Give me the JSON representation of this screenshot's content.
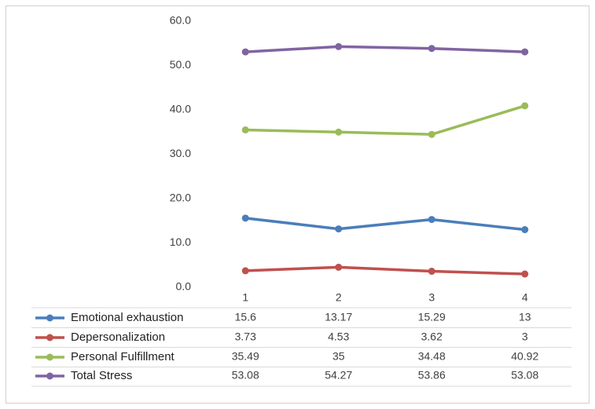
{
  "chart_data": {
    "type": "line",
    "categories": [
      "1",
      "2",
      "3",
      "4"
    ],
    "series": [
      {
        "name": "Emotional exhaustion",
        "color": "#4a7ebb",
        "values": [
          15.6,
          13.17,
          15.29,
          13
        ]
      },
      {
        "name": "Depersonalization",
        "color": "#c0504d",
        "values": [
          3.73,
          4.53,
          3.62,
          3
        ]
      },
      {
        "name": "Personal Fulfillment",
        "color": "#9bbb59",
        "values": [
          35.49,
          35,
          34.48,
          40.92
        ]
      },
      {
        "name": "Total Stress",
        "color": "#8064a2",
        "values": [
          53.08,
          54.27,
          53.86,
          53.08
        ]
      }
    ],
    "ylim": [
      0,
      60
    ],
    "yticks": [
      {
        "value": 0,
        "label": "0.0"
      },
      {
        "value": 10,
        "label": "10.0"
      },
      {
        "value": 20,
        "label": "20.0"
      },
      {
        "value": 30,
        "label": "30.0"
      },
      {
        "value": 40,
        "label": "40.0"
      },
      {
        "value": 50,
        "label": "50.0"
      },
      {
        "value": 60,
        "label": "60.0"
      }
    ],
    "grid": false
  }
}
